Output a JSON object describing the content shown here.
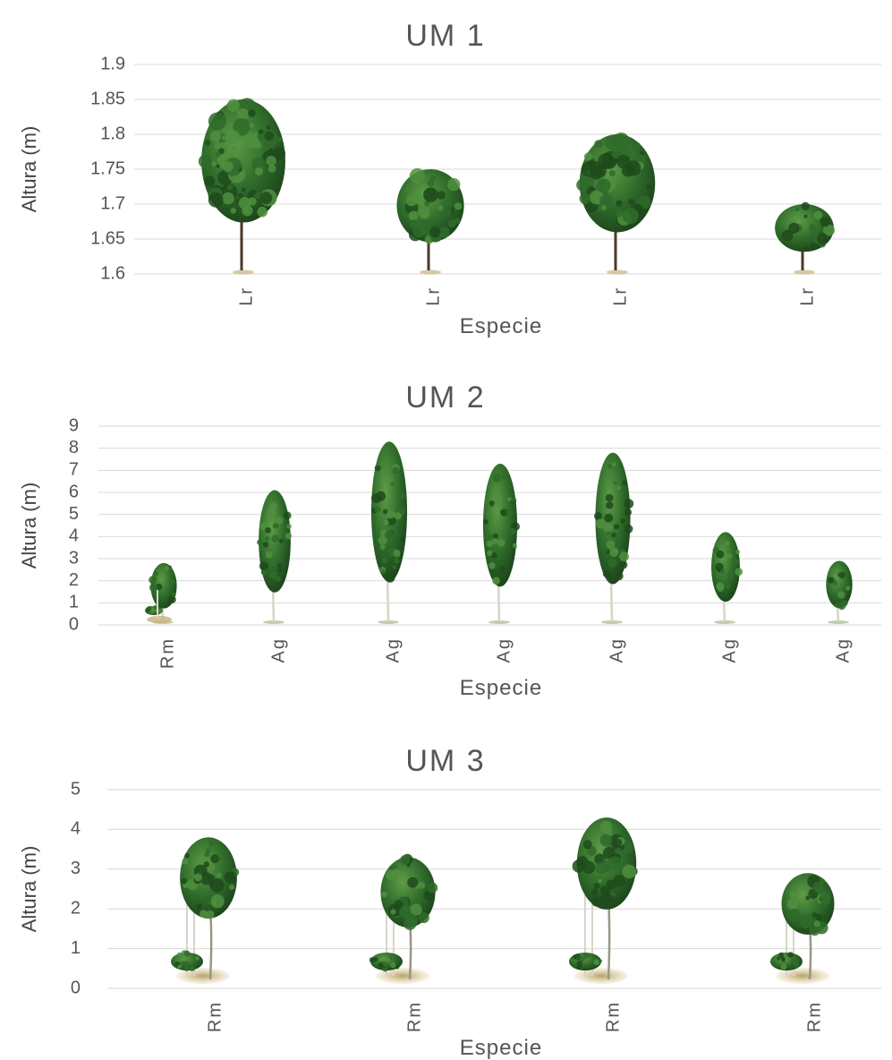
{
  "chart_data": [
    {
      "type": "bar",
      "title": "UM 1",
      "xlabel": "Especie",
      "ylabel": "Altura (m)",
      "ylim": [
        1.6,
        1.9
      ],
      "yticks": [
        "1.6",
        "1.65",
        "1.7",
        "1.75",
        "1.8",
        "1.85",
        "1.9"
      ],
      "categories": [
        "Lr",
        "Lr",
        "Lr",
        "Lr"
      ],
      "values": [
        1.85,
        1.75,
        1.8,
        1.7
      ],
      "grid": true,
      "legend": "none"
    },
    {
      "type": "bar",
      "title": "UM 2",
      "xlabel": "Especie",
      "ylabel": "Altura (m)",
      "ylim": [
        0,
        9
      ],
      "yticks": [
        "0",
        "1",
        "2",
        "3",
        "4",
        "5",
        "6",
        "7",
        "8",
        "9"
      ],
      "categories": [
        "Rm",
        "Ag",
        "Ag",
        "Ag",
        "Ag",
        "Ag",
        "Ag"
      ],
      "values": [
        2.8,
        6.1,
        8.3,
        7.3,
        7.8,
        4.2,
        2.9
      ],
      "grid": true,
      "legend": "none"
    },
    {
      "type": "bar",
      "title": "UM 3",
      "xlabel": "Especie",
      "ylabel": "Altura (m)",
      "ylim": [
        0,
        5
      ],
      "yticks": [
        "0",
        "1",
        "2",
        "3",
        "4",
        "5"
      ],
      "categories": [
        "Rm",
        "Rm",
        "Rm",
        "Rm"
      ],
      "values": [
        3.8,
        3.3,
        4.3,
        2.9
      ],
      "grid": true,
      "legend": "none"
    }
  ],
  "colors": {
    "foliage": "#2f6b2a",
    "foliage_light": "#4f8f3e",
    "foliage_dark": "#1f4a1c",
    "trunk": "#4a3a28",
    "birch_trunk": "#d8d4c8",
    "ground": "#c9b07a",
    "text": "#555555",
    "grid": "#d9d9d9"
  },
  "icons": {
    "UM 1": "broadleaf-tree-icon",
    "UM 2": "poplar-tree-icon",
    "UM 3": "shrub-tree-group-icon"
  }
}
